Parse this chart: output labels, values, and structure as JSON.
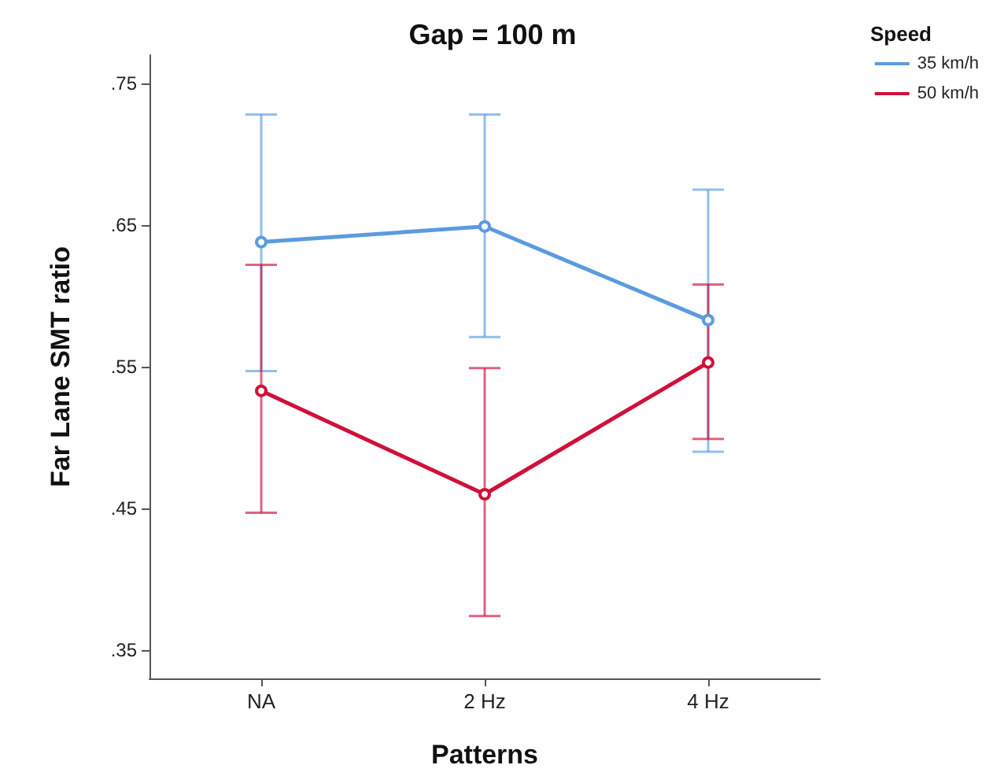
{
  "chart_data": {
    "type": "line",
    "title": "Gap = 100 m",
    "xlabel": "Patterns",
    "ylabel": "Far Lane SMT ratio",
    "legend_title": "Speed",
    "categories": [
      "NA",
      "2 Hz",
      "4 Hz"
    ],
    "series": [
      {
        "name": "35 km/h",
        "color": "#5b9be0",
        "values": [
          0.638,
          0.649,
          0.583
        ],
        "errors": [
          [
            0.547,
            0.728
          ],
          [
            0.571,
            0.728
          ],
          [
            0.49,
            0.675
          ]
        ]
      },
      {
        "name": "50 km/h",
        "color": "#d0103a",
        "values": [
          0.533,
          0.46,
          0.553
        ],
        "errors": [
          [
            0.447,
            0.622
          ],
          [
            0.374,
            0.549
          ],
          [
            0.499,
            0.608
          ]
        ]
      }
    ],
    "ylim": [
      0.33,
      0.77
    ],
    "yticks": [
      {
        "value": 0.35,
        "label": ".35"
      },
      {
        "value": 0.45,
        "label": ".45"
      },
      {
        "value": 0.55,
        "label": ".55"
      },
      {
        "value": 0.65,
        "label": ".65"
      },
      {
        "value": 0.75,
        "label": ".75"
      }
    ],
    "grid": false,
    "legend": "top right",
    "marker": "circle",
    "line_style": "solid"
  }
}
